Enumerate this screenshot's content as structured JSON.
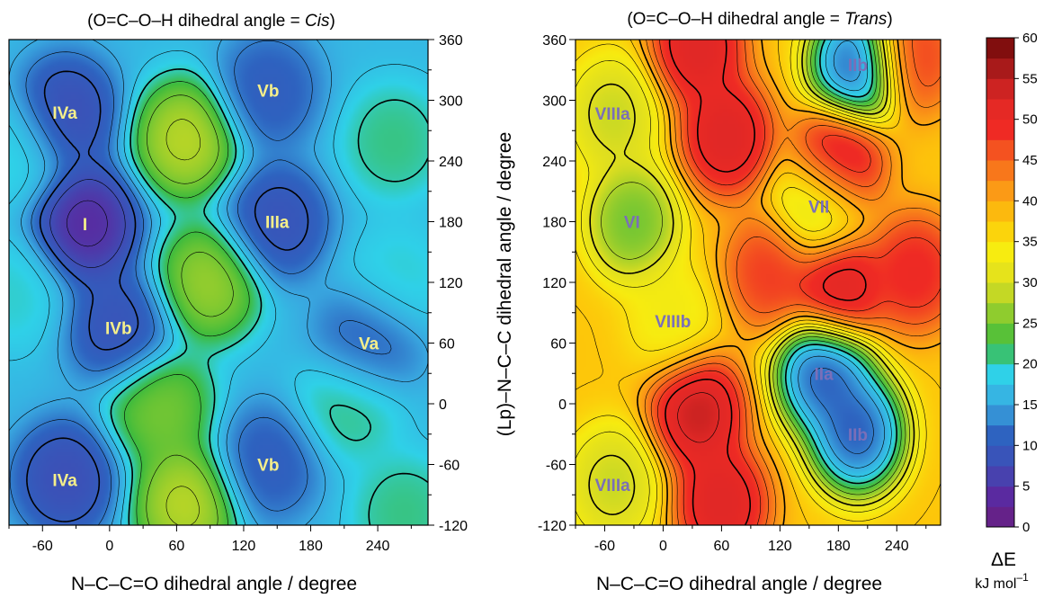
{
  "chart_data": [
    {
      "type": "heatmap",
      "title_prefix": "(O=C–O–H  dihedral angle = ",
      "title_conf": "Cis",
      "title_suffix": ")",
      "xlabel": "N–C–C=O  dihedral angle / degree",
      "ylabel": "",
      "xlim": [
        -90,
        285
      ],
      "ylim": [
        -120,
        360
      ],
      "xticks": [
        -60,
        0,
        60,
        120,
        180,
        240
      ],
      "yticks": [
        -120,
        -60,
        0,
        60,
        120,
        180,
        240,
        300,
        360
      ],
      "y_axis_side": "right",
      "minima": [
        {
          "label": "I",
          "x": -22,
          "y": 178,
          "energy": 1
        },
        {
          "label": "IIIa",
          "x": 150,
          "y": 180,
          "energy": 7
        },
        {
          "label": "IVa",
          "x": -40,
          "y": 288,
          "energy": 6
        },
        {
          "label": "IVb",
          "x": 8,
          "y": 75,
          "energy": 7
        },
        {
          "label": "IVa",
          "x": -40,
          "y": -75,
          "energy": 6
        },
        {
          "label": "Va",
          "x": 232,
          "y": 60,
          "energy": 9
        },
        {
          "label": "Vb",
          "x": 142,
          "y": 310,
          "energy": 9
        },
        {
          "label": "Vb",
          "x": 142,
          "y": -60,
          "energy": 9
        }
      ],
      "maxima": [
        {
          "x": 68,
          "y": 262,
          "energy": 31
        },
        {
          "x": 88,
          "y": 120,
          "energy": 29
        },
        {
          "x": 45,
          "y": -5,
          "energy": 27
        },
        {
          "x": 68,
          "y": -100,
          "energy": 31
        },
        {
          "x": 255,
          "y": 260,
          "energy": 22
        },
        {
          "x": 215,
          "y": 0,
          "energy": 22
        },
        {
          "x": 258,
          "y": 120,
          "energy": 20
        },
        {
          "x": -88,
          "y": 250,
          "energy": 20
        },
        {
          "x": -88,
          "y": 110,
          "energy": 20
        },
        {
          "x": 265,
          "y": -110,
          "energy": 22
        }
      ]
    },
    {
      "type": "heatmap",
      "title_prefix": "(O=C–O–H dihedral angle = ",
      "title_conf": "Trans",
      "title_suffix": ")",
      "xlabel": "N–C–C=O  dihedral angle / degree",
      "ylabel": "(Lp)–N–C–C  dihedral angle / degree",
      "xlim": [
        -90,
        285
      ],
      "ylim": [
        -120,
        360
      ],
      "xticks": [
        -60,
        0,
        60,
        120,
        180,
        240
      ],
      "yticks": [
        -120,
        -60,
        0,
        60,
        120,
        180,
        240,
        300,
        360
      ],
      "y_axis_side": "left",
      "minima": [
        {
          "label": "IIa",
          "x": 165,
          "y": 30,
          "energy": 5
        },
        {
          "label": "IIb",
          "x": 200,
          "y": -30,
          "energy": 5
        },
        {
          "label": "IIb",
          "x": 200,
          "y": 335,
          "energy": 5
        },
        {
          "label": "VI",
          "x": -32,
          "y": 180,
          "energy": 22
        },
        {
          "label": "VII",
          "x": 160,
          "y": 195,
          "energy": 27
        },
        {
          "label": "VIIIa",
          "x": -52,
          "y": 287,
          "energy": 27
        },
        {
          "label": "VIIIa",
          "x": -52,
          "y": -80,
          "energy": 27
        },
        {
          "label": "VIIIb",
          "x": 10,
          "y": 82,
          "energy": 32
        }
      ],
      "maxima": [
        {
          "x": 35,
          "y": -8,
          "energy": 58
        },
        {
          "x": 65,
          "y": 265,
          "energy": 56
        },
        {
          "x": 180,
          "y": 240,
          "energy": 56
        },
        {
          "x": 180,
          "y": 115,
          "energy": 56
        },
        {
          "x": 35,
          "y": 355,
          "energy": 56
        },
        {
          "x": 60,
          "y": -100,
          "energy": 56
        },
        {
          "x": 260,
          "y": 130,
          "energy": 52
        },
        {
          "x": 255,
          "y": 345,
          "energy": 50
        },
        {
          "x": 110,
          "y": 130,
          "energy": 50
        }
      ]
    },
    {
      "type": "colorbar",
      "label_symbol": "ΔE",
      "label_unit": "kJ mol",
      "label_unit_exp": "–1",
      "vmin": 0,
      "vmax": 60,
      "ticks": [
        0,
        5,
        10,
        15,
        20,
        25,
        30,
        35,
        40,
        45,
        50,
        55,
        60
      ],
      "colors": [
        "#6b1e7e",
        "#5a2aa0",
        "#3f4db5",
        "#2e63c0",
        "#39a7e0",
        "#2fd1e8",
        "#3dbb3d",
        "#8fcc2e",
        "#dede20",
        "#f7ec10",
        "#fdc80a",
        "#fb9a16",
        "#f6661e",
        "#ef2a24",
        "#e02826",
        "#a81a1a",
        "#6e0808"
      ]
    }
  ]
}
